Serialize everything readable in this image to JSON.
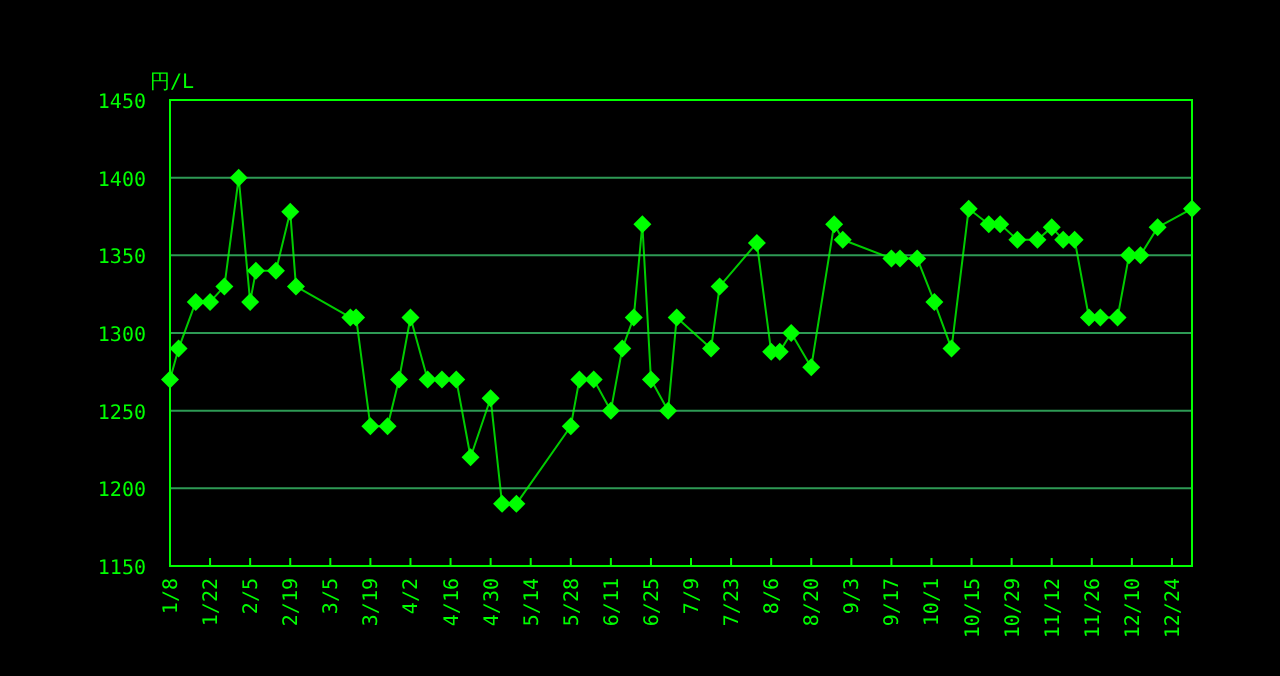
{
  "chart_data": {
    "type": "line",
    "ylabel": "円/L",
    "x": [
      "--01-08",
      "--01-11",
      "--01-17",
      "--01-22",
      "--01-27",
      "--02-01",
      "--02-05",
      "--02-07",
      "--02-14",
      "--02-19",
      "--02-21",
      "--03-12",
      "--03-14",
      "--03-19",
      "--03-25",
      "--03-29",
      "--04-02",
      "--04-08",
      "--04-13",
      "--04-18",
      "--04-23",
      "--04-30",
      "--05-04",
      "--05-09",
      "--05-28",
      "--05-31",
      "--06-05",
      "--06-11",
      "--06-15",
      "--06-19",
      "--06-22",
      "--06-25",
      "--07-01",
      "--07-04",
      "--07-16",
      "--07-19",
      "--08-01",
      "--08-06",
      "--08-09",
      "--08-13",
      "--08-20",
      "--08-28",
      "--08-31",
      "--09-17",
      "--09-20",
      "--09-26",
      "--10-02",
      "--10-08",
      "--10-14",
      "--10-21",
      "--10-25",
      "--10-31",
      "--11-07",
      "--11-12",
      "--11-16",
      "--11-20",
      "--11-25",
      "--11-29",
      "--12-05",
      "--12-09",
      "--12-13",
      "--12-19",
      "--12-31"
    ],
    "series": [
      {
        "color": "#00ff00",
        "values": [
          1270,
          1290,
          1320,
          1320,
          1330,
          1400,
          1320,
          1340,
          1340,
          1378,
          1330,
          1310,
          1310,
          1240,
          1240,
          1270,
          1310,
          1270,
          1270,
          1270,
          1220,
          1258,
          1190,
          1190,
          1240,
          1270,
          1270,
          1250,
          1290,
          1310,
          1370,
          1270,
          1250,
          1310,
          1290,
          1330,
          1358,
          1288,
          1288,
          1300,
          1278,
          1370,
          1360,
          1348,
          1348,
          1348,
          1320,
          1290,
          1380,
          1370,
          1370,
          1360,
          1360,
          1368,
          1360,
          1360,
          1310,
          1310,
          1310,
          1350,
          1350,
          1368,
          1380
        ]
      }
    ],
    "xlim": [
      "--01-08",
      "--12-31"
    ],
    "xticks": [
      {
        "value": "--01-08",
        "label": "1/8"
      },
      {
        "value": "--01-22",
        "label": "1/22"
      },
      {
        "value": "--02-05",
        "label": "2/5"
      },
      {
        "value": "--02-19",
        "label": "2/19"
      },
      {
        "value": "--03-05",
        "label": "3/5"
      },
      {
        "value": "--03-19",
        "label": "3/19"
      },
      {
        "value": "--04-02",
        "label": "4/2"
      },
      {
        "value": "--04-16",
        "label": "4/16"
      },
      {
        "value": "--04-30",
        "label": "4/30"
      },
      {
        "value": "--05-14",
        "label": "5/14"
      },
      {
        "value": "--05-28",
        "label": "5/28"
      },
      {
        "value": "--06-11",
        "label": "6/11"
      },
      {
        "value": "--06-25",
        "label": "6/25"
      },
      {
        "value": "--07-09",
        "label": "7/9"
      },
      {
        "value": "--07-23",
        "label": "7/23"
      },
      {
        "value": "--08-06",
        "label": "8/6"
      },
      {
        "value": "--08-20",
        "label": "8/20"
      },
      {
        "value": "--09-03",
        "label": "9/3"
      },
      {
        "value": "--09-17",
        "label": "9/17"
      },
      {
        "value": "--10-01",
        "label": "10/1"
      },
      {
        "value": "--10-15",
        "label": "10/15"
      },
      {
        "value": "--10-29",
        "label": "10/29"
      },
      {
        "value": "--11-12",
        "label": "11/12"
      },
      {
        "value": "--11-26",
        "label": "11/26"
      },
      {
        "value": "--12-10",
        "label": "12/10"
      },
      {
        "value": "--12-24",
        "label": "12/24"
      }
    ],
    "ylim": [
      1150,
      1450
    ],
    "yticks": [
      1150,
      1200,
      1250,
      1300,
      1350,
      1400,
      1450
    ],
    "grid": "y",
    "marker": "diamond",
    "line_style": "solid"
  }
}
